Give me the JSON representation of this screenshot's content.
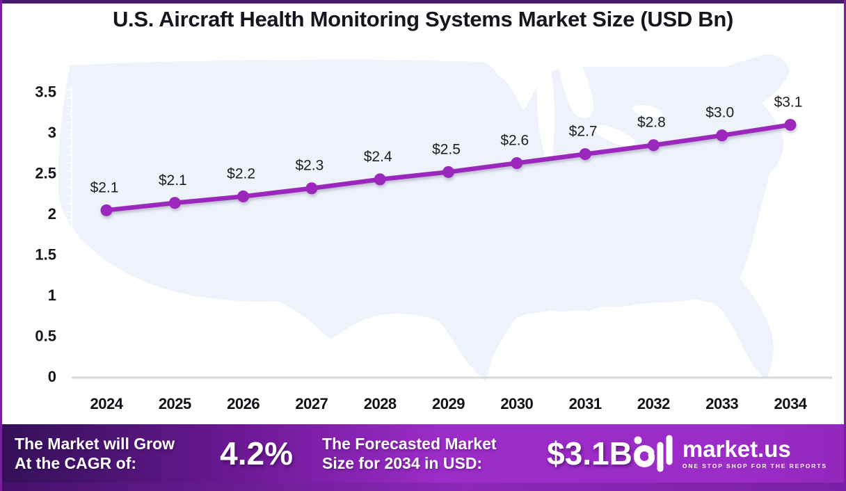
{
  "frame": {
    "top_bar_color": "#471a6e",
    "border_color": "#7b1fa2",
    "map_fill": "#edf2fb",
    "axis_line_color": "#d8d8d8"
  },
  "title": "U.S. Aircraft Health Monitoring Systems Market Size (USD Bn)",
  "chart_data": {
    "type": "line",
    "title": "U.S. Aircraft Health Monitoring Systems Market Size (USD Bn)",
    "x": [
      2024,
      2025,
      2026,
      2027,
      2028,
      2029,
      2030,
      2031,
      2032,
      2033,
      2034
    ],
    "series": [
      {
        "name": "Market Size (USD Bn)",
        "values": [
          2.1,
          2.1,
          2.2,
          2.3,
          2.4,
          2.5,
          2.6,
          2.7,
          2.8,
          3.0,
          3.1
        ],
        "labels": [
          "$2.1",
          "$2.1",
          "$2.2",
          "$2.3",
          "$2.4",
          "$2.5",
          "$2.6",
          "$2.7",
          "$2.8",
          "$3.0",
          "$3.1"
        ],
        "plot_values": [
          2.04,
          2.13,
          2.21,
          2.31,
          2.42,
          2.51,
          2.62,
          2.73,
          2.84,
          2.96,
          3.09
        ],
        "color": "#9c27bd"
      }
    ],
    "xlabel": "",
    "ylabel": "",
    "ylim": [
      0,
      3.5
    ],
    "yticks": [
      0,
      0.5,
      1,
      1.5,
      2,
      2.5,
      3,
      3.5
    ],
    "grid": false,
    "legend": "none",
    "background": "us-map-silhouette"
  },
  "footer": {
    "cagr_label_line1": "The Market will Grow",
    "cagr_label_line2": "At the CAGR of:",
    "cagr_value": "4.2%",
    "forecast_label_line1": "The Forecasted Market",
    "forecast_label_line2": "Size for 2034 in USD:",
    "forecast_value": "$3.1B",
    "logo_name": "market.us",
    "logo_tagline": "ONE STOP SHOP FOR THE REPORTS"
  }
}
